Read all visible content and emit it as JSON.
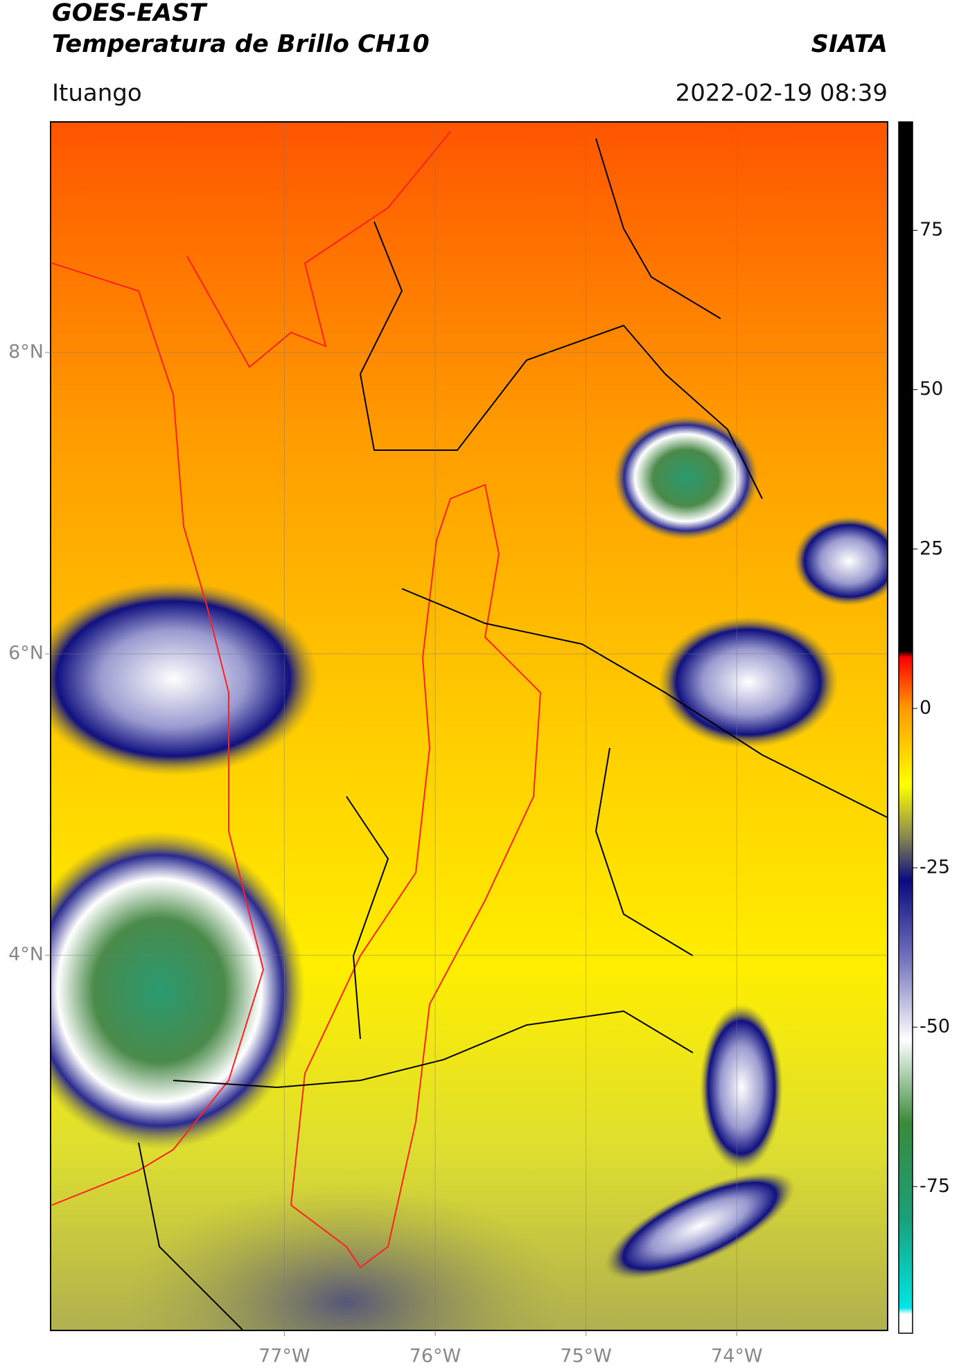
{
  "chart_data": {
    "type": "map",
    "title": "GOES-EAST",
    "subtitle": "Temperatura de Brillo CH10",
    "source": "SIATA",
    "location": "Ituango",
    "datetime": "2022-02-19 08:39",
    "xlim": [
      -78.55,
      -73.0
    ],
    "ylim": [
      1.51,
      9.53
    ],
    "xticks": [
      {
        "value": -77,
        "label": "77°W"
      },
      {
        "value": -76,
        "label": "76°W"
      },
      {
        "value": -75,
        "label": "75°W"
      },
      {
        "value": -74,
        "label": "74°W"
      }
    ],
    "yticks": [
      {
        "value": 8,
        "label": "8°N"
      },
      {
        "value": 6,
        "label": "6°N"
      },
      {
        "value": 4,
        "label": "4°N"
      }
    ],
    "grid": true,
    "colorbar": {
      "lim": [
        -98,
        92
      ],
      "ticks": [
        75,
        50,
        25,
        0,
        -25,
        -50,
        -75
      ],
      "colormap": [
        {
          "value": -98,
          "color": "#ffffff"
        },
        {
          "value": -95,
          "color": "#ffffff"
        },
        {
          "value": -94,
          "color": "#00e5e5"
        },
        {
          "value": -80,
          "color": "#1aa07a"
        },
        {
          "value": -65,
          "color": "#3a8a3a"
        },
        {
          "value": -52,
          "color": "#ffffff"
        },
        {
          "value": -40,
          "color": "#7a7ac0"
        },
        {
          "value": -27,
          "color": "#0a0a80"
        },
        {
          "value": -20,
          "color": "#8a8a50"
        },
        {
          "value": -12,
          "color": "#ffff00"
        },
        {
          "value": 0,
          "color": "#ff9900"
        },
        {
          "value": 8,
          "color": "#ff0000"
        },
        {
          "value": 9,
          "color": "#000000"
        },
        {
          "value": 92,
          "color": "#000000"
        }
      ]
    }
  }
}
